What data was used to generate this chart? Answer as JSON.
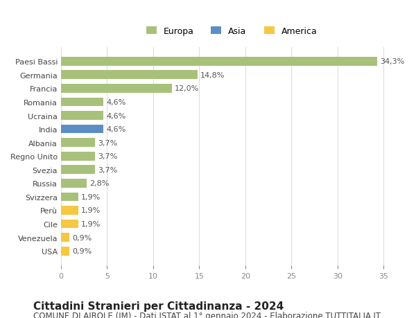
{
  "categories": [
    "USA",
    "Venezuela",
    "Cile",
    "Perù",
    "Svizzera",
    "Russia",
    "Svezia",
    "Regno Unito",
    "Albania",
    "India",
    "Ucraina",
    "Romania",
    "Francia",
    "Germania",
    "Paesi Bassi"
  ],
  "values": [
    0.9,
    0.9,
    1.9,
    1.9,
    1.9,
    2.8,
    3.7,
    3.7,
    3.7,
    4.6,
    4.6,
    4.6,
    12.0,
    14.8,
    34.3
  ],
  "colors": [
    "#f5c842",
    "#f5c842",
    "#f5c842",
    "#f5c842",
    "#a8c17a",
    "#a8c17a",
    "#a8c17a",
    "#a8c17a",
    "#a8c17a",
    "#5b8ec4",
    "#a8c17a",
    "#a8c17a",
    "#a8c17a",
    "#a8c17a",
    "#a8c17a"
  ],
  "bar_labels": [
    "0,9%",
    "0,9%",
    "1,9%",
    "1,9%",
    "1,9%",
    "2,8%",
    "3,7%",
    "3,7%",
    "3,7%",
    "4,6%",
    "4,6%",
    "4,6%",
    "12,0%",
    "14,8%",
    "34,3%"
  ],
  "xlim": [
    0,
    37
  ],
  "xticks": [
    0,
    5,
    10,
    15,
    20,
    25,
    30,
    35
  ],
  "legend_labels": [
    "Europa",
    "Asia",
    "America"
  ],
  "legend_colors": [
    "#a8c17a",
    "#5b8ec4",
    "#f5c842"
  ],
  "title": "Cittadini Stranieri per Cittadinanza - 2024",
  "subtitle": "COMUNE DI AIROLE (IM) - Dati ISTAT al 1° gennaio 2024 - Elaborazione TUTTITALIA.IT",
  "bg_color": "#ffffff",
  "grid_color": "#dddddd",
  "title_fontsize": 11,
  "subtitle_fontsize": 8.5,
  "label_fontsize": 8,
  "tick_fontsize": 8,
  "legend_fontsize": 9
}
